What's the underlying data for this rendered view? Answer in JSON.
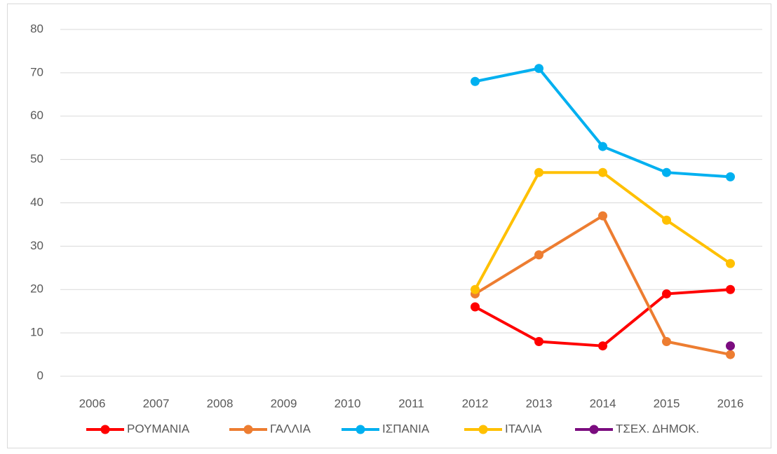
{
  "chart_data": {
    "type": "line",
    "categories": [
      "2006",
      "2007",
      "2008",
      "2009",
      "2010",
      "2011",
      "2012",
      "2013",
      "2014",
      "2015",
      "2016"
    ],
    "series": [
      {
        "name": "ΡΟΥΜΑΝΙΑ",
        "color": "#ff0000",
        "values": [
          null,
          null,
          null,
          null,
          null,
          null,
          16,
          8,
          7,
          19,
          20
        ]
      },
      {
        "name": "ΓΑΛΛΙΑ",
        "color": "#ed7d31",
        "values": [
          null,
          null,
          null,
          null,
          null,
          null,
          19,
          28,
          37,
          8,
          5
        ]
      },
      {
        "name": "ΙΣΠΑΝΙΑ",
        "color": "#00b0f0",
        "values": [
          null,
          null,
          null,
          null,
          null,
          null,
          68,
          71,
          53,
          47,
          46
        ]
      },
      {
        "name": "ΙΤΑΛΙΑ",
        "color": "#ffc000",
        "values": [
          null,
          null,
          null,
          null,
          null,
          null,
          20,
          47,
          47,
          36,
          26
        ]
      },
      {
        "name": "ΤΣΕΧ. ΔΗΜΟΚ.",
        "color": "#7b0c7f",
        "values": [
          null,
          null,
          null,
          null,
          null,
          null,
          null,
          null,
          null,
          null,
          7
        ]
      }
    ],
    "ylim": [
      0,
      80
    ],
    "yticks": [
      0,
      10,
      20,
      30,
      40,
      50,
      60,
      70,
      80
    ],
    "grid": true,
    "legend": "bottom"
  }
}
